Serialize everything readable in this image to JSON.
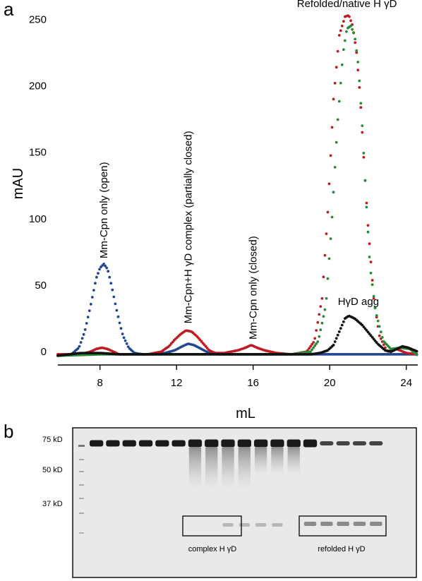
{
  "panel_a": {
    "letter": "a"
  },
  "panel_b": {
    "letter": "b",
    "mw_markers": [
      "75 kD",
      "50 kD",
      "37 kD"
    ],
    "box_labels": [
      "complex H γD",
      "refolded H γD"
    ]
  },
  "chart_data": {
    "type": "scatter",
    "title": "",
    "xlabel": "mL",
    "ylabel": "mAU",
    "xlim": [
      5.8,
      24.6
    ],
    "ylim": [
      -10,
      255
    ],
    "xticks": [
      8,
      12,
      16,
      20,
      24
    ],
    "yticks": [
      0,
      50,
      100,
      150,
      200,
      250
    ],
    "grid": false,
    "annotations": [
      {
        "text": "Mm-Cpn only (open)",
        "x": 8.2,
        "y": 68,
        "rotation": -90
      },
      {
        "text": "Mm-Cpn+H γD complex (partially closed)",
        "x": 12.6,
        "y": 19,
        "rotation": -90
      },
      {
        "text": "Mm-Cpn only (closed)",
        "x": 16.0,
        "y": 7,
        "rotation": -90
      },
      {
        "text": "Refolded/native H  γD",
        "x": 20.9,
        "y": 257,
        "rotation": 0
      },
      {
        "text": "HγD agg",
        "x": 21.5,
        "y": 33,
        "rotation": 0
      }
    ],
    "series": [
      {
        "color": "#23468f",
        "x": [
          5.8,
          6.5,
          6.9,
          7.2,
          7.5,
          7.8,
          8.0,
          8.2,
          8.4,
          8.6,
          8.8,
          9.0,
          9.2,
          9.5,
          9.8,
          10.2,
          10.8,
          11.4,
          11.9,
          12.3,
          12.6,
          12.9,
          13.3,
          13.7,
          14.2,
          15,
          17,
          19,
          20,
          21,
          22,
          23,
          24,
          24.6
        ],
        "y": [
          -3,
          -2,
          3,
          15,
          34,
          55,
          63,
          66,
          62,
          50,
          36,
          23,
          12,
          3,
          -1,
          -2,
          -2,
          -1,
          1,
          4,
          6,
          5,
          2,
          -1,
          -2,
          -2,
          -2,
          -2,
          -2,
          -2,
          -2,
          -2,
          -2,
          -2
        ]
      },
      {
        "color": "#c01a22",
        "x": [
          5.8,
          7.0,
          7.5,
          7.8,
          8.1,
          8.4,
          8.7,
          9.0,
          9.5,
          10.5,
          11.2,
          11.6,
          11.9,
          12.2,
          12.5,
          12.8,
          13.1,
          13.4,
          13.7,
          14.0,
          14.5,
          15.2,
          15.6,
          15.9,
          16.2,
          16.6,
          17.2,
          18.0,
          18.8,
          19.2,
          19.6,
          19.9,
          20.2,
          20.5,
          20.8,
          21.0,
          21.2,
          21.4,
          21.6,
          21.8,
          22.0,
          22.3,
          22.6,
          23.0,
          23.5,
          24.0,
          24.6
        ],
        "y": [
          -2,
          -2,
          0,
          2,
          3,
          2,
          0,
          -2,
          -2,
          -2,
          0,
          4,
          9,
          13,
          16,
          15,
          11,
          6,
          1,
          -1,
          -1,
          1,
          3,
          5,
          3,
          1,
          -1,
          -2,
          0,
          8,
          40,
          105,
          190,
          238,
          252,
          253,
          245,
          225,
          190,
          140,
          95,
          40,
          12,
          0,
          2,
          -1,
          -2
        ]
      },
      {
        "color": "#2a8a3a",
        "x": [
          5.8,
          8,
          10,
          12,
          14,
          16,
          18,
          19.0,
          19.4,
          19.8,
          20.1,
          20.4,
          20.7,
          20.9,
          21.1,
          21.3,
          21.5,
          21.7,
          21.9,
          22.1,
          22.4,
          22.8,
          23.2,
          23.7,
          24.2,
          24.6
        ],
        "y": [
          -3,
          -2,
          -2,
          -2,
          -2,
          -2,
          -2,
          0,
          8,
          35,
          95,
          170,
          225,
          243,
          245,
          238,
          215,
          170,
          115,
          65,
          30,
          8,
          2,
          3,
          2,
          -3
        ]
      },
      {
        "color": "#111111",
        "x": [
          5.8,
          7,
          8,
          9,
          10,
          12,
          14,
          16,
          18,
          19,
          19.5,
          19.9,
          20.2,
          20.5,
          20.8,
          21.0,
          21.3,
          21.7,
          22.1,
          22.5,
          22.9,
          23.2,
          23.5,
          23.8,
          24.1,
          24.6
        ],
        "y": [
          -3,
          -1,
          -1,
          -2,
          -2,
          -2,
          -2,
          -2,
          -2,
          -2,
          -1,
          1,
          5,
          15,
          25,
          27,
          25,
          20,
          13,
          6,
          1,
          0,
          2,
          4,
          3,
          0
        ]
      }
    ]
  }
}
